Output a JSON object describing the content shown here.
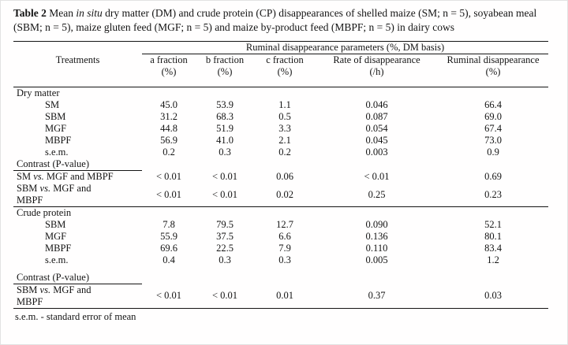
{
  "colors": {
    "ink": "#141414",
    "background": "#ffffff"
  },
  "caption": {
    "label": "Table 2",
    "text1": " Mean ",
    "italic1": "in situ",
    "text2": " dry matter (DM) and crude protein (CP) disappearances of shelled maize (SM; n = 5), soyabean meal (SBM; n = 5), maize gluten feed (MGF; n = 5) and maize by-product feed (MBPF; n = 5) in dairy cows"
  },
  "header": {
    "spanner": "Ruminal disappearance parameters (%, DM basis)",
    "treatments": "Treatments",
    "cols": [
      {
        "label": "a fraction",
        "unit": "(%)"
      },
      {
        "label": "b fraction",
        "unit": "(%)"
      },
      {
        "label": "c fraction",
        "unit": "(%)"
      },
      {
        "label": "Rate of disappearance",
        "unit": "(/h)"
      },
      {
        "label": "Ruminal disappearance",
        "unit": "(%)"
      }
    ]
  },
  "dm": {
    "label": "Dry matter",
    "rows": [
      {
        "label": "SM",
        "a": "45.0",
        "b": "53.9",
        "c": "1.1",
        "rate": "0.046",
        "rum": "66.4"
      },
      {
        "label": "SBM",
        "a": "31.2",
        "b": "68.3",
        "c": "0.5",
        "rate": "0.087",
        "rum": "69.0"
      },
      {
        "label": "MGF",
        "a": "44.8",
        "b": "51.9",
        "c": "3.3",
        "rate": "0.054",
        "rum": "67.4"
      },
      {
        "label": "MBPF",
        "a": "56.9",
        "b": "41.0",
        "c": "2.1",
        "rate": "0.045",
        "rum": "73.0"
      },
      {
        "label": "s.e.m.",
        "a": "0.2",
        "b": "0.3",
        "c": "0.2",
        "rate": "0.003",
        "rum": "0.9"
      }
    ],
    "contrast_label": "Contrast (P-value)",
    "contrasts": [
      {
        "pre": "SM ",
        "vs": "vs.",
        "post": " MGF and MBPF",
        "a": "< 0.01",
        "b": "< 0.01",
        "c": "0.06",
        "rate": "< 0.01",
        "rum": "0.69"
      },
      {
        "pre": "SBM ",
        "vs": "vs.",
        "post": " MGF and",
        "line2": "MBPF",
        "a": "< 0.01",
        "b": "< 0.01",
        "c": "0.02",
        "rate": "0.25",
        "rum": "0.23"
      }
    ]
  },
  "cp": {
    "label": "Crude protein",
    "rows": [
      {
        "label": "SBM",
        "a": "7.8",
        "b": "79.5",
        "c": "12.7",
        "rate": "0.090",
        "rum": "52.1"
      },
      {
        "label": "MGF",
        "a": "55.9",
        "b": "37.5",
        "c": "6.6",
        "rate": "0.136",
        "rum": "80.1"
      },
      {
        "label": "MBPF",
        "a": "69.6",
        "b": "22.5",
        "c": "7.9",
        "rate": "0.110",
        "rum": "83.4"
      },
      {
        "label": "s.e.m.",
        "a": "0.4",
        "b": "0.3",
        "c": "0.3",
        "rate": "0.005",
        "rum": "1.2"
      }
    ],
    "contrast_label": "Contrast (P-value)",
    "contrasts": [
      {
        "pre": "SBM ",
        "vs": "vs.",
        "post": " MGF and",
        "line2": "MBPF",
        "a": "< 0.01",
        "b": "< 0.01",
        "c": "0.01",
        "rate": "0.37",
        "rum": "0.03"
      }
    ]
  },
  "footnote": "s.e.m. - standard error of mean"
}
